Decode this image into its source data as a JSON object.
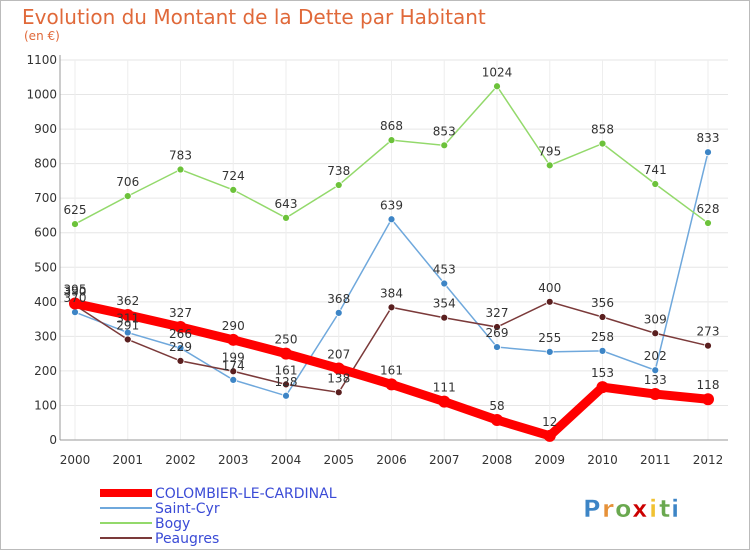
{
  "chart_data": {
    "type": "line",
    "title": "Evolution du Montant de la Dette par Habitant",
    "subtitle": "(en €)",
    "xlabel": "",
    "ylabel": "",
    "ylim": [
      0,
      1100
    ],
    "y_ticks": [
      0,
      100,
      200,
      300,
      400,
      500,
      600,
      700,
      800,
      900,
      1000,
      1100
    ],
    "x": [
      "2000",
      "2001",
      "2002",
      "2003",
      "2004",
      "2005",
      "2006",
      "2007",
      "2008",
      "2009",
      "2010",
      "2011",
      "2012"
    ],
    "grid": true,
    "legend_position": "bottom-left",
    "series": [
      {
        "name": "COLOMBIER-LE-CARDINAL",
        "color": "#ff0000",
        "marker_color": "#ff0000",
        "emphasis": true,
        "values": [
          395,
          362,
          327,
          290,
          250,
          207,
          161,
          111,
          58,
          12,
          153,
          133,
          118
        ]
      },
      {
        "name": "Saint-Cyr",
        "color": "#6fa8dc",
        "marker_color": "#3d85c6",
        "emphasis": false,
        "values": [
          370,
          311,
          266,
          174,
          128,
          368,
          639,
          453,
          269,
          255,
          258,
          202,
          833
        ]
      },
      {
        "name": "Bogy",
        "color": "#93d96b",
        "marker_color": "#6cc23a",
        "emphasis": false,
        "values": [
          625,
          706,
          783,
          724,
          643,
          738,
          868,
          853,
          1024,
          795,
          858,
          741,
          628
        ]
      },
      {
        "name": "Peaugres",
        "color": "#7b3a3a",
        "marker_color": "#5a1f1f",
        "emphasis": false,
        "values": [
          390,
          291,
          229,
          199,
          161,
          138,
          384,
          354,
          327,
          400,
          356,
          309,
          273
        ]
      }
    ]
  },
  "brand": {
    "name": "Proxiti",
    "letters": [
      "P",
      "r",
      "o",
      "x",
      "i",
      "t",
      "i"
    ],
    "letter_colors": [
      "#3d85c6",
      "#e69138",
      "#6aa84f",
      "#cc0000",
      "#f1c232",
      "#6aa84f",
      "#3d85c6"
    ]
  }
}
